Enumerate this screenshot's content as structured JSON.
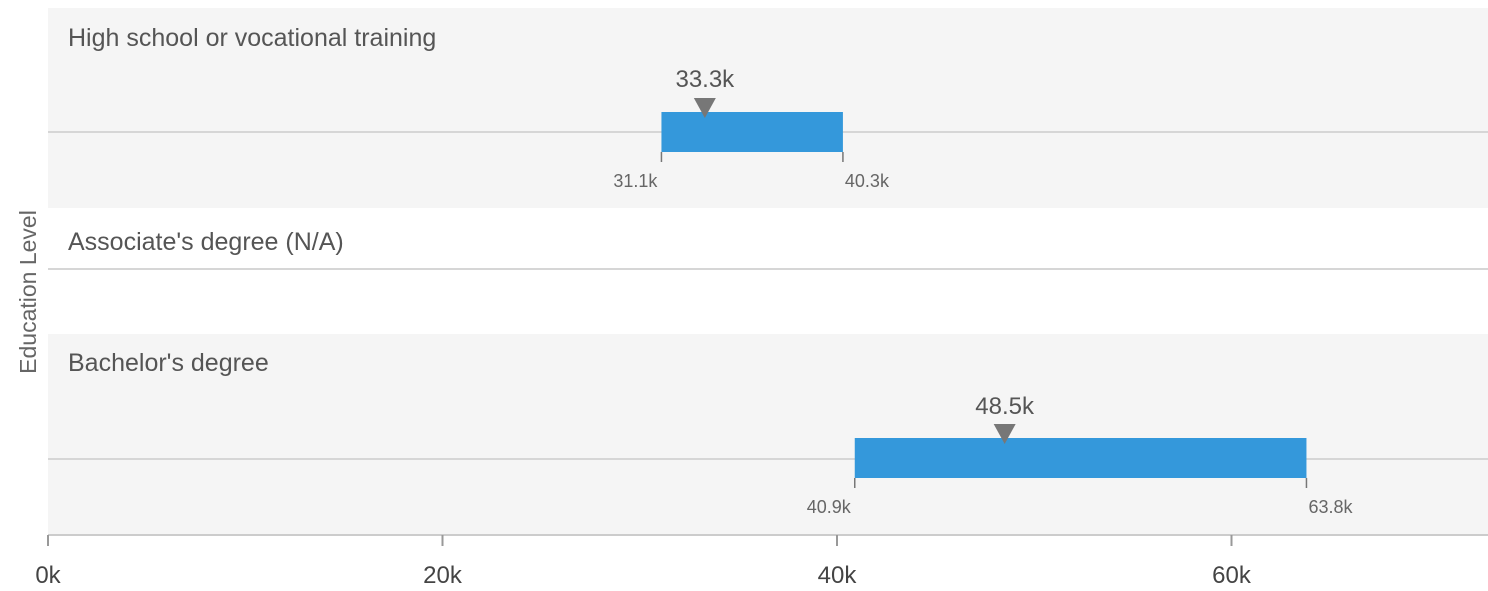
{
  "chart_data": {
    "type": "range-bar",
    "ylabel": "Education Level",
    "xlabel": "",
    "xlim": [
      0,
      70000
    ],
    "x_ticks": [
      {
        "value": 0,
        "label": "0k"
      },
      {
        "value": 20000,
        "label": "20k"
      },
      {
        "value": 40000,
        "label": "40k"
      },
      {
        "value": 60000,
        "label": "60k"
      }
    ],
    "categories": [
      {
        "label": "High school or vocational training",
        "low": 31100,
        "high": 40300,
        "median": 33300,
        "low_label": "31.1k",
        "high_label": "40.3k",
        "median_label": "33.3k",
        "shaded": true
      },
      {
        "label": "Associate's degree (N/A)",
        "shaded": false
      },
      {
        "label": "Bachelor's degree",
        "low": 40900,
        "high": 63800,
        "median": 48500,
        "low_label": "40.9k",
        "high_label": "63.8k",
        "median_label": "48.5k",
        "shaded": true
      }
    ],
    "colors": {
      "bar": "#3498db",
      "marker": "#777777",
      "band": "#f5f5f5"
    }
  }
}
